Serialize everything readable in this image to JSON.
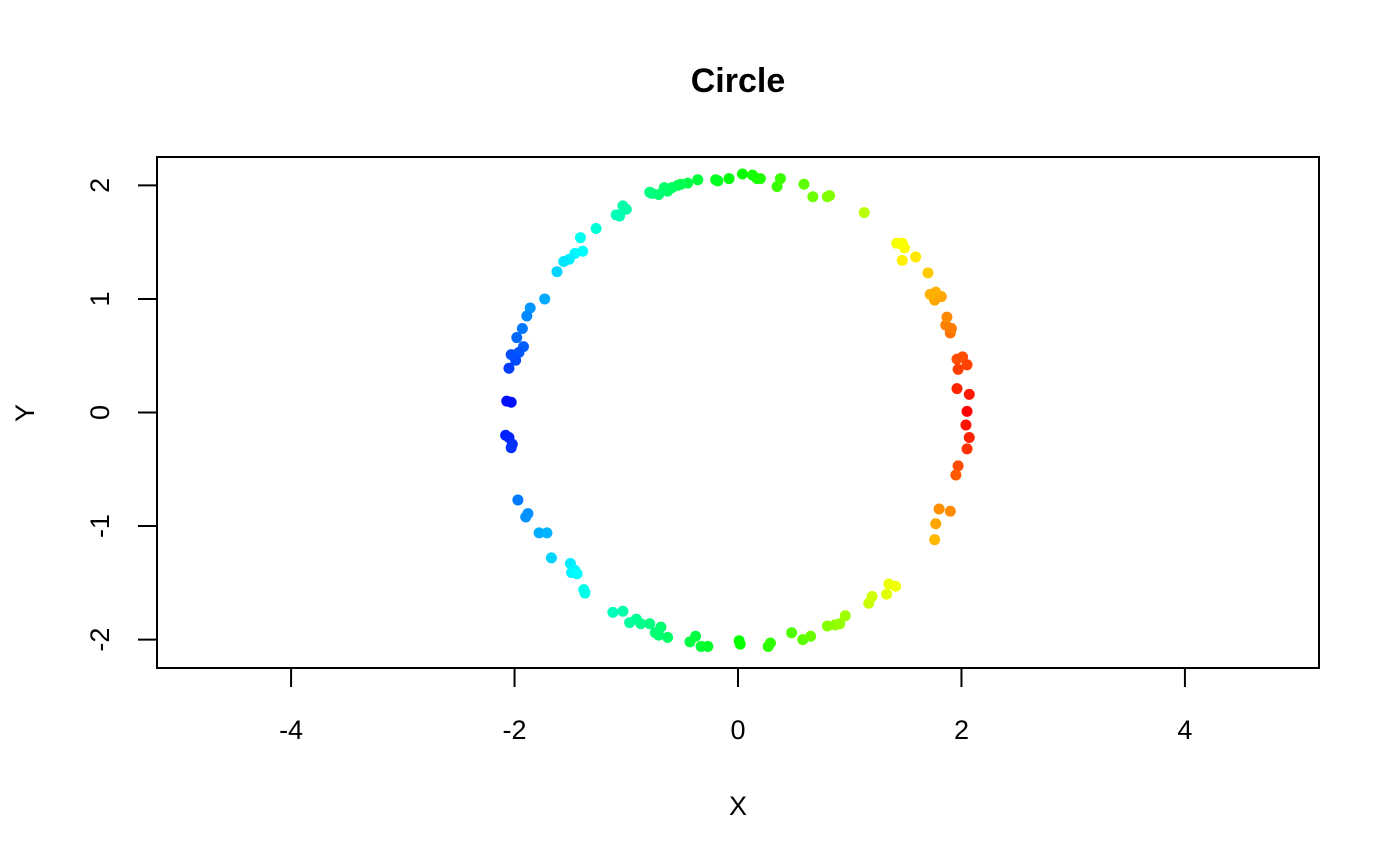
{
  "chart_data": {
    "type": "scatter",
    "title": "Circle",
    "xlabel": "X",
    "ylabel": "Y",
    "xlim": [
      -5.2,
      5.2
    ],
    "ylim": [
      -2.25,
      2.25
    ],
    "xticks": [
      -4,
      -2,
      0,
      2,
      4
    ],
    "yticks": [
      -2,
      -1,
      0,
      1,
      2
    ],
    "grid": false,
    "legend": "none",
    "color_scale": "rainbow by angle: red at 0°, yellow at ±60°, green at ±120°, blue at 180°",
    "points": [
      [
        2.05,
        0.01
      ],
      [
        2.07,
        0.16
      ],
      [
        2.04,
        -0.11
      ],
      [
        2.07,
        -0.22
      ],
      [
        2.05,
        -0.32
      ],
      [
        1.96,
        0.21
      ],
      [
        1.97,
        0.38
      ],
      [
        2.01,
        0.49
      ],
      [
        2.05,
        0.42
      ],
      [
        1.96,
        0.47
      ],
      [
        1.9,
        0.7
      ],
      [
        1.91,
        0.74
      ],
      [
        1.86,
        0.77
      ],
      [
        1.87,
        0.84
      ],
      [
        1.82,
        1.02
      ],
      [
        1.77,
        1.06
      ],
      [
        1.76,
        0.99
      ],
      [
        1.72,
        1.04
      ],
      [
        1.7,
        1.23
      ],
      [
        1.59,
        1.37
      ],
      [
        1.47,
        1.34
      ],
      [
        1.49,
        1.45
      ],
      [
        1.47,
        1.49
      ],
      [
        1.42,
        1.49
      ],
      [
        1.13,
        1.76
      ],
      [
        0.82,
        1.91
      ],
      [
        0.8,
        1.9
      ],
      [
        0.67,
        1.9
      ],
      [
        0.59,
        2.01
      ],
      [
        0.38,
        2.06
      ],
      [
        0.35,
        1.99
      ],
      [
        0.2,
        2.06
      ],
      [
        0.17,
        2.06
      ],
      [
        0.13,
        2.09
      ],
      [
        0.04,
        2.1
      ],
      [
        -0.08,
        2.06
      ],
      [
        -0.18,
        2.04
      ],
      [
        -0.2,
        2.05
      ],
      [
        -0.36,
        2.05
      ],
      [
        -0.45,
        2.02
      ],
      [
        -0.51,
        2.01
      ],
      [
        -0.54,
        2.0
      ],
      [
        -0.59,
        1.98
      ],
      [
        -0.63,
        1.95
      ],
      [
        -0.66,
        1.98
      ],
      [
        -0.71,
        1.92
      ],
      [
        -0.77,
        1.93
      ],
      [
        -0.79,
        1.94
      ],
      [
        -1.0,
        1.79
      ],
      [
        -1.03,
        1.82
      ],
      [
        -1.06,
        1.73
      ],
      [
        -1.09,
        1.74
      ],
      [
        -1.27,
        1.62
      ],
      [
        -1.39,
        1.42
      ],
      [
        -1.41,
        1.54
      ],
      [
        -1.46,
        1.4
      ],
      [
        -1.51,
        1.35
      ],
      [
        -1.56,
        1.33
      ],
      [
        -1.62,
        1.24
      ],
      [
        -1.73,
        1.0
      ],
      [
        -1.86,
        0.92
      ],
      [
        -1.89,
        0.85
      ],
      [
        -1.93,
        0.74
      ],
      [
        -1.92,
        0.58
      ],
      [
        -1.96,
        0.53
      ],
      [
        -1.98,
        0.66
      ],
      [
        -1.99,
        0.46
      ],
      [
        -2.03,
        0.51
      ],
      [
        -2.05,
        0.39
      ],
      [
        -2.03,
        0.09
      ],
      [
        -2.07,
        0.1
      ],
      [
        -2.08,
        -0.2
      ],
      [
        -2.05,
        -0.22
      ],
      [
        -2.02,
        -0.28
      ],
      [
        -2.03,
        -0.31
      ],
      [
        -1.97,
        -0.77
      ],
      [
        -1.88,
        -0.89
      ],
      [
        -1.9,
        -0.92
      ],
      [
        -1.78,
        -1.06
      ],
      [
        -1.71,
        -1.06
      ],
      [
        -1.67,
        -1.28
      ],
      [
        -1.5,
        -1.33
      ],
      [
        -1.49,
        -1.41
      ],
      [
        -1.46,
        -1.39
      ],
      [
        -1.44,
        -1.42
      ],
      [
        -1.38,
        -1.56
      ],
      [
        -1.37,
        -1.59
      ],
      [
        -1.12,
        -1.76
      ],
      [
        -1.03,
        -1.75
      ],
      [
        -0.97,
        -1.85
      ],
      [
        -0.91,
        -1.82
      ],
      [
        -0.87,
        -1.86
      ],
      [
        -0.79,
        -1.86
      ],
      [
        -0.74,
        -1.94
      ],
      [
        -0.69,
        -1.89
      ],
      [
        -0.71,
        -1.96
      ],
      [
        -0.63,
        -1.98
      ],
      [
        -0.43,
        -2.02
      ],
      [
        -0.38,
        -1.97
      ],
      [
        -0.33,
        -2.06
      ],
      [
        -0.27,
        -2.06
      ],
      [
        0.01,
        -2.01
      ],
      [
        0.02,
        -2.04
      ],
      [
        0.27,
        -2.06
      ],
      [
        0.29,
        -2.03
      ],
      [
        0.48,
        -1.94
      ],
      [
        0.58,
        -2.0
      ],
      [
        0.65,
        -1.97
      ],
      [
        0.8,
        -1.88
      ],
      [
        0.87,
        -1.87
      ],
      [
        0.91,
        -1.86
      ],
      [
        0.96,
        -1.79
      ],
      [
        1.17,
        -1.68
      ],
      [
        1.2,
        -1.62
      ],
      [
        1.33,
        -1.6
      ],
      [
        1.35,
        -1.51
      ],
      [
        1.41,
        -1.53
      ],
      [
        1.76,
        -1.12
      ],
      [
        1.77,
        -0.98
      ],
      [
        1.8,
        -0.85
      ],
      [
        1.9,
        -0.87
      ],
      [
        1.97,
        -0.47
      ],
      [
        1.95,
        -0.55
      ]
    ]
  }
}
